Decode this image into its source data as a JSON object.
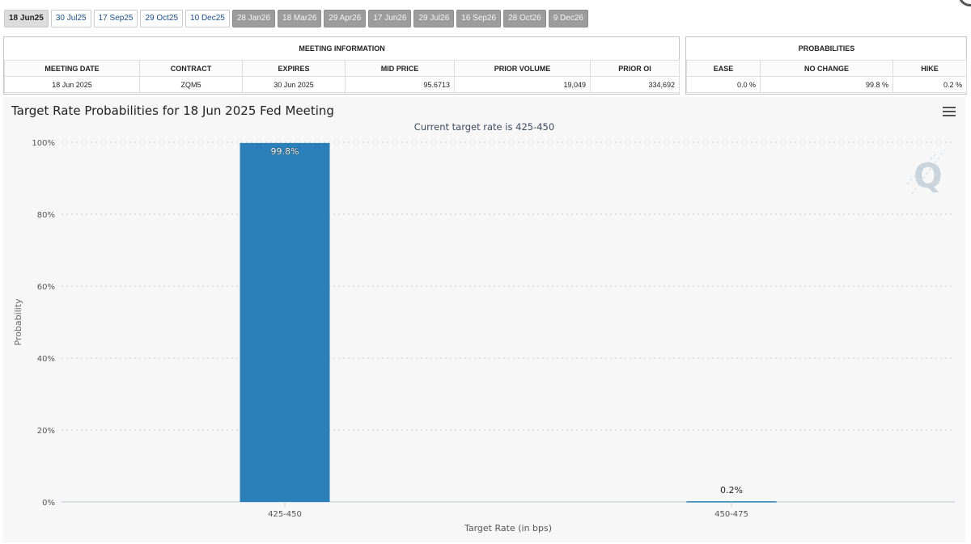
{
  "tabs": [
    {
      "label": "18 Jun25",
      "state": "active"
    },
    {
      "label": "30 Jul25",
      "state": "normal"
    },
    {
      "label": "17 Sep25",
      "state": "normal"
    },
    {
      "label": "29 Oct25",
      "state": "normal"
    },
    {
      "label": "10 Dec25",
      "state": "normal"
    },
    {
      "label": "28 Jan26",
      "state": "future"
    },
    {
      "label": "18 Mar26",
      "state": "future"
    },
    {
      "label": "29 Apr26",
      "state": "future"
    },
    {
      "label": "17 Jun26",
      "state": "future"
    },
    {
      "label": "29 Jul26",
      "state": "future"
    },
    {
      "label": "16 Sep26",
      "state": "future"
    },
    {
      "label": "28 Oct26",
      "state": "future"
    },
    {
      "label": "9 Dec26",
      "state": "future"
    }
  ],
  "meeting_info": {
    "title": "MEETING INFORMATION",
    "headers": {
      "meeting_date": "MEETING DATE",
      "contract": "CONTRACT",
      "expires": "EXPIRES",
      "mid_price": "MID PRICE",
      "prior_volume": "PRIOR VOLUME",
      "prior_oi": "PRIOR OI"
    },
    "values": {
      "meeting_date": "18 Jun 2025",
      "contract": "ZQM5",
      "expires": "30 Jun 2025",
      "mid_price": "95.6713",
      "prior_volume": "19,049",
      "prior_oi": "334,692"
    }
  },
  "probabilities": {
    "title": "PROBABILITIES",
    "headers": {
      "ease": "EASE",
      "no_change": "NO CHANGE",
      "hike": "HIKE"
    },
    "values": {
      "ease": "0.0 %",
      "no_change": "99.8 %",
      "hike": "0.2 %"
    }
  },
  "chart": {
    "title": "Target Rate Probabilities for 18 Jun 2025 Fed Meeting",
    "subtitle": "Current target rate is 425-450",
    "bar_color": "#2b80b9",
    "watermark_color": "#c9d4dc",
    "watermark_text": "Q"
  },
  "chart_data": {
    "type": "bar",
    "categories": [
      "425-450",
      "450-475"
    ],
    "values": [
      99.8,
      0.2
    ],
    "data_labels": [
      "99.8%",
      "0.2%"
    ],
    "xlabel": "Target Rate (in bps)",
    "ylabel": "Probability",
    "ylim": [
      0,
      100
    ],
    "yticks": [
      "0%",
      "20%",
      "40%",
      "60%",
      "80%",
      "100%"
    ],
    "ytick_values": [
      0,
      20,
      40,
      60,
      80,
      100
    ],
    "grid": true,
    "legend": "none"
  }
}
